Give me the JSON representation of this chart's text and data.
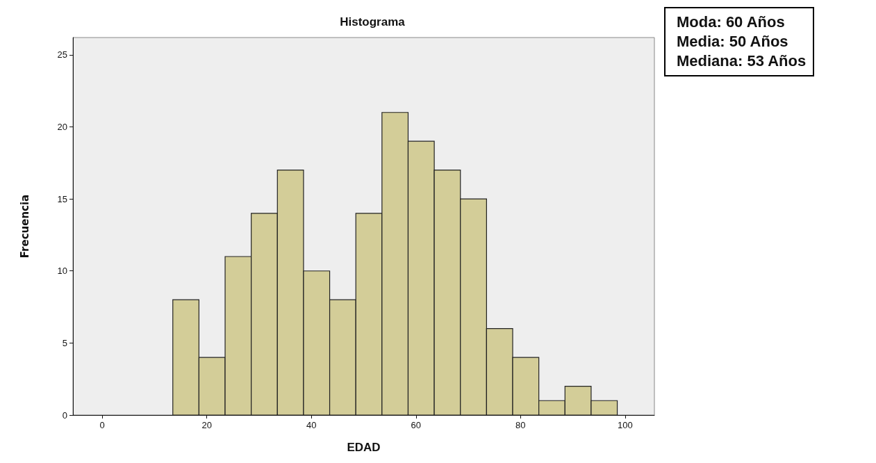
{
  "chart_data": {
    "type": "histogram",
    "title": "Histograma",
    "xlabel": "EDAD",
    "ylabel": "Frecuencia",
    "annotations": [
      "Moda: 60 Años",
      "Media: 50 Años",
      "Mediana: 53 Años"
    ],
    "bins": [
      13.5,
      18.5,
      23.5,
      28.5,
      33.5,
      38.5,
      43.5,
      48.5,
      53.5,
      58.5,
      63.5,
      68.5,
      73.5,
      78.5,
      83.5,
      88.5,
      93.5,
      98.5
    ],
    "values": [
      8,
      4,
      11,
      14,
      17,
      10,
      8,
      14,
      21,
      19,
      17,
      15,
      6,
      4,
      1,
      2,
      1
    ],
    "color": "#d3cd98",
    "xlim": [
      -5.6,
      105.6
    ],
    "xticks": [
      0,
      20,
      40,
      60,
      80,
      100
    ],
    "ylim": [
      0,
      26.2
    ],
    "yticks": [
      0,
      5,
      10,
      15,
      20,
      25
    ],
    "grid": false
  }
}
